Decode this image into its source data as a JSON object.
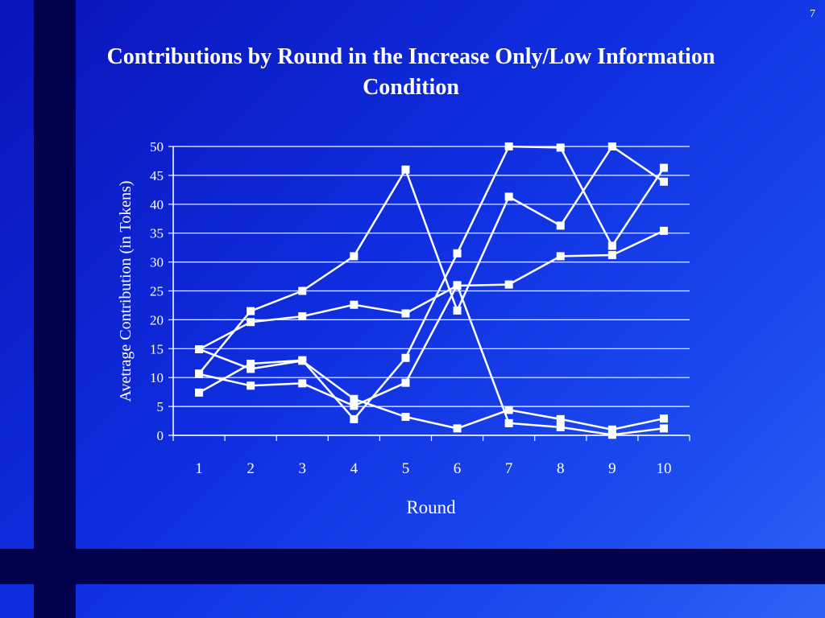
{
  "slide_number": "7",
  "colors": {
    "background": "#0f2ee0",
    "stripe": "#00004f",
    "lines": "#ffffff"
  },
  "chart_data": {
    "type": "line",
    "title": "Contributions by Round in the Increase Only/Low Information Condition",
    "xlabel": "Round",
    "ylabel": "Avetrage Contribution (in Tokens)",
    "categories": [
      "1",
      "2",
      "3",
      "4",
      "5",
      "6",
      "7",
      "8",
      "9",
      "10"
    ],
    "yticks": [
      "0",
      "5",
      "10",
      "15",
      "20",
      "25",
      "30",
      "35",
      "40",
      "45",
      "50"
    ],
    "ylim": [
      0,
      50
    ],
    "grid": true,
    "legend": "none",
    "series": [
      {
        "values": [
          10.7,
          21.5,
          25.0,
          31.0,
          46.0,
          21.6,
          41.3,
          36.3,
          50.0,
          43.9
        ]
      },
      {
        "values": [
          7.4,
          12.4,
          13.0,
          2.8,
          13.4,
          31.5,
          50.0,
          49.8,
          32.8,
          46.3
        ]
      },
      {
        "values": [
          14.9,
          19.6,
          20.6,
          22.6,
          21.1,
          25.9,
          26.1,
          31.0,
          31.2,
          35.4
        ]
      },
      {
        "values": [
          10.6,
          8.6,
          9.0,
          5.1,
          9.1,
          26.0,
          2.1,
          1.4,
          0.1,
          1.2
        ]
      },
      {
        "values": [
          14.9,
          11.5,
          12.9,
          6.3,
          3.2,
          1.2,
          4.4,
          2.8,
          1.0,
          2.9
        ]
      }
    ]
  }
}
